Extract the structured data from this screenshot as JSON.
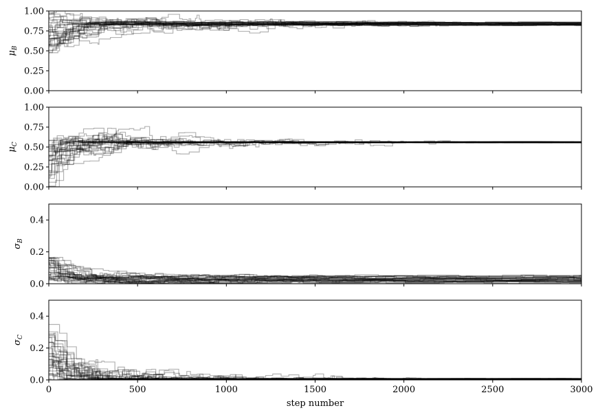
{
  "chart_data": [
    {
      "type": "line",
      "ylabel_symbol": "μ",
      "ylabel_sub": "B",
      "xlim": [
        0,
        3000
      ],
      "ylim": [
        0,
        1
      ],
      "yticks": [
        0,
        0.25,
        0.5,
        0.75,
        1
      ],
      "ytick_labels": [
        "0.00",
        "0.25",
        "0.50",
        "0.75",
        "1.00"
      ],
      "xticks": [
        0,
        500,
        1000,
        1500,
        2000,
        2500,
        3000
      ],
      "show_xtick_labels": false,
      "walkers": 32,
      "converged_value": 0.84,
      "converged_spread": 0.02,
      "start_range": [
        0.45,
        0.98
      ],
      "color": "#000000",
      "seed": 11
    },
    {
      "type": "line",
      "ylabel_symbol": "μ",
      "ylabel_sub": "C",
      "xlim": [
        0,
        3000
      ],
      "ylim": [
        0,
        1
      ],
      "yticks": [
        0,
        0.25,
        0.5,
        0.75,
        1
      ],
      "ytick_labels": [
        "0.00",
        "0.25",
        "0.50",
        "0.75",
        "1.00"
      ],
      "xticks": [
        0,
        500,
        1000,
        1500,
        2000,
        2500,
        3000
      ],
      "show_xtick_labels": false,
      "walkers": 32,
      "converged_value": 0.56,
      "converged_spread": 0.006,
      "start_range": [
        0.0,
        0.62
      ],
      "color": "#000000",
      "seed": 23
    },
    {
      "type": "line",
      "ylabel_symbol": "σ",
      "ylabel_sub": "B",
      "xlim": [
        0,
        3000
      ],
      "ylim": [
        0,
        0.5
      ],
      "yticks": [
        0,
        0.2,
        0.4
      ],
      "ytick_labels": [
        "0.0",
        "0.2",
        "0.4"
      ],
      "xticks": [
        0,
        500,
        1000,
        1500,
        2000,
        2500,
        3000
      ],
      "show_xtick_labels": false,
      "walkers": 32,
      "converged_value": 0.03,
      "converged_spread": 0.02,
      "start_range": [
        0.02,
        0.17
      ],
      "color": "#000000",
      "seed": 37
    },
    {
      "type": "line",
      "ylabel_symbol": "σ",
      "ylabel_sub": "C",
      "xlim": [
        0,
        3000
      ],
      "ylim": [
        0,
        0.5
      ],
      "yticks": [
        0,
        0.2,
        0.4
      ],
      "ytick_labels": [
        "0.0",
        "0.2",
        "0.4"
      ],
      "xticks": [
        0,
        500,
        1000,
        1500,
        2000,
        2500,
        3000
      ],
      "xtick_labels": [
        "0",
        "500",
        "1000",
        "1500",
        "2000",
        "2500",
        "3000"
      ],
      "show_xtick_labels": true,
      "xlabel": "step number",
      "walkers": 32,
      "converged_value": 0.006,
      "converged_spread": 0.003,
      "start_range": [
        0.0,
        0.35
      ],
      "color": "#000000",
      "seed": 53
    }
  ]
}
